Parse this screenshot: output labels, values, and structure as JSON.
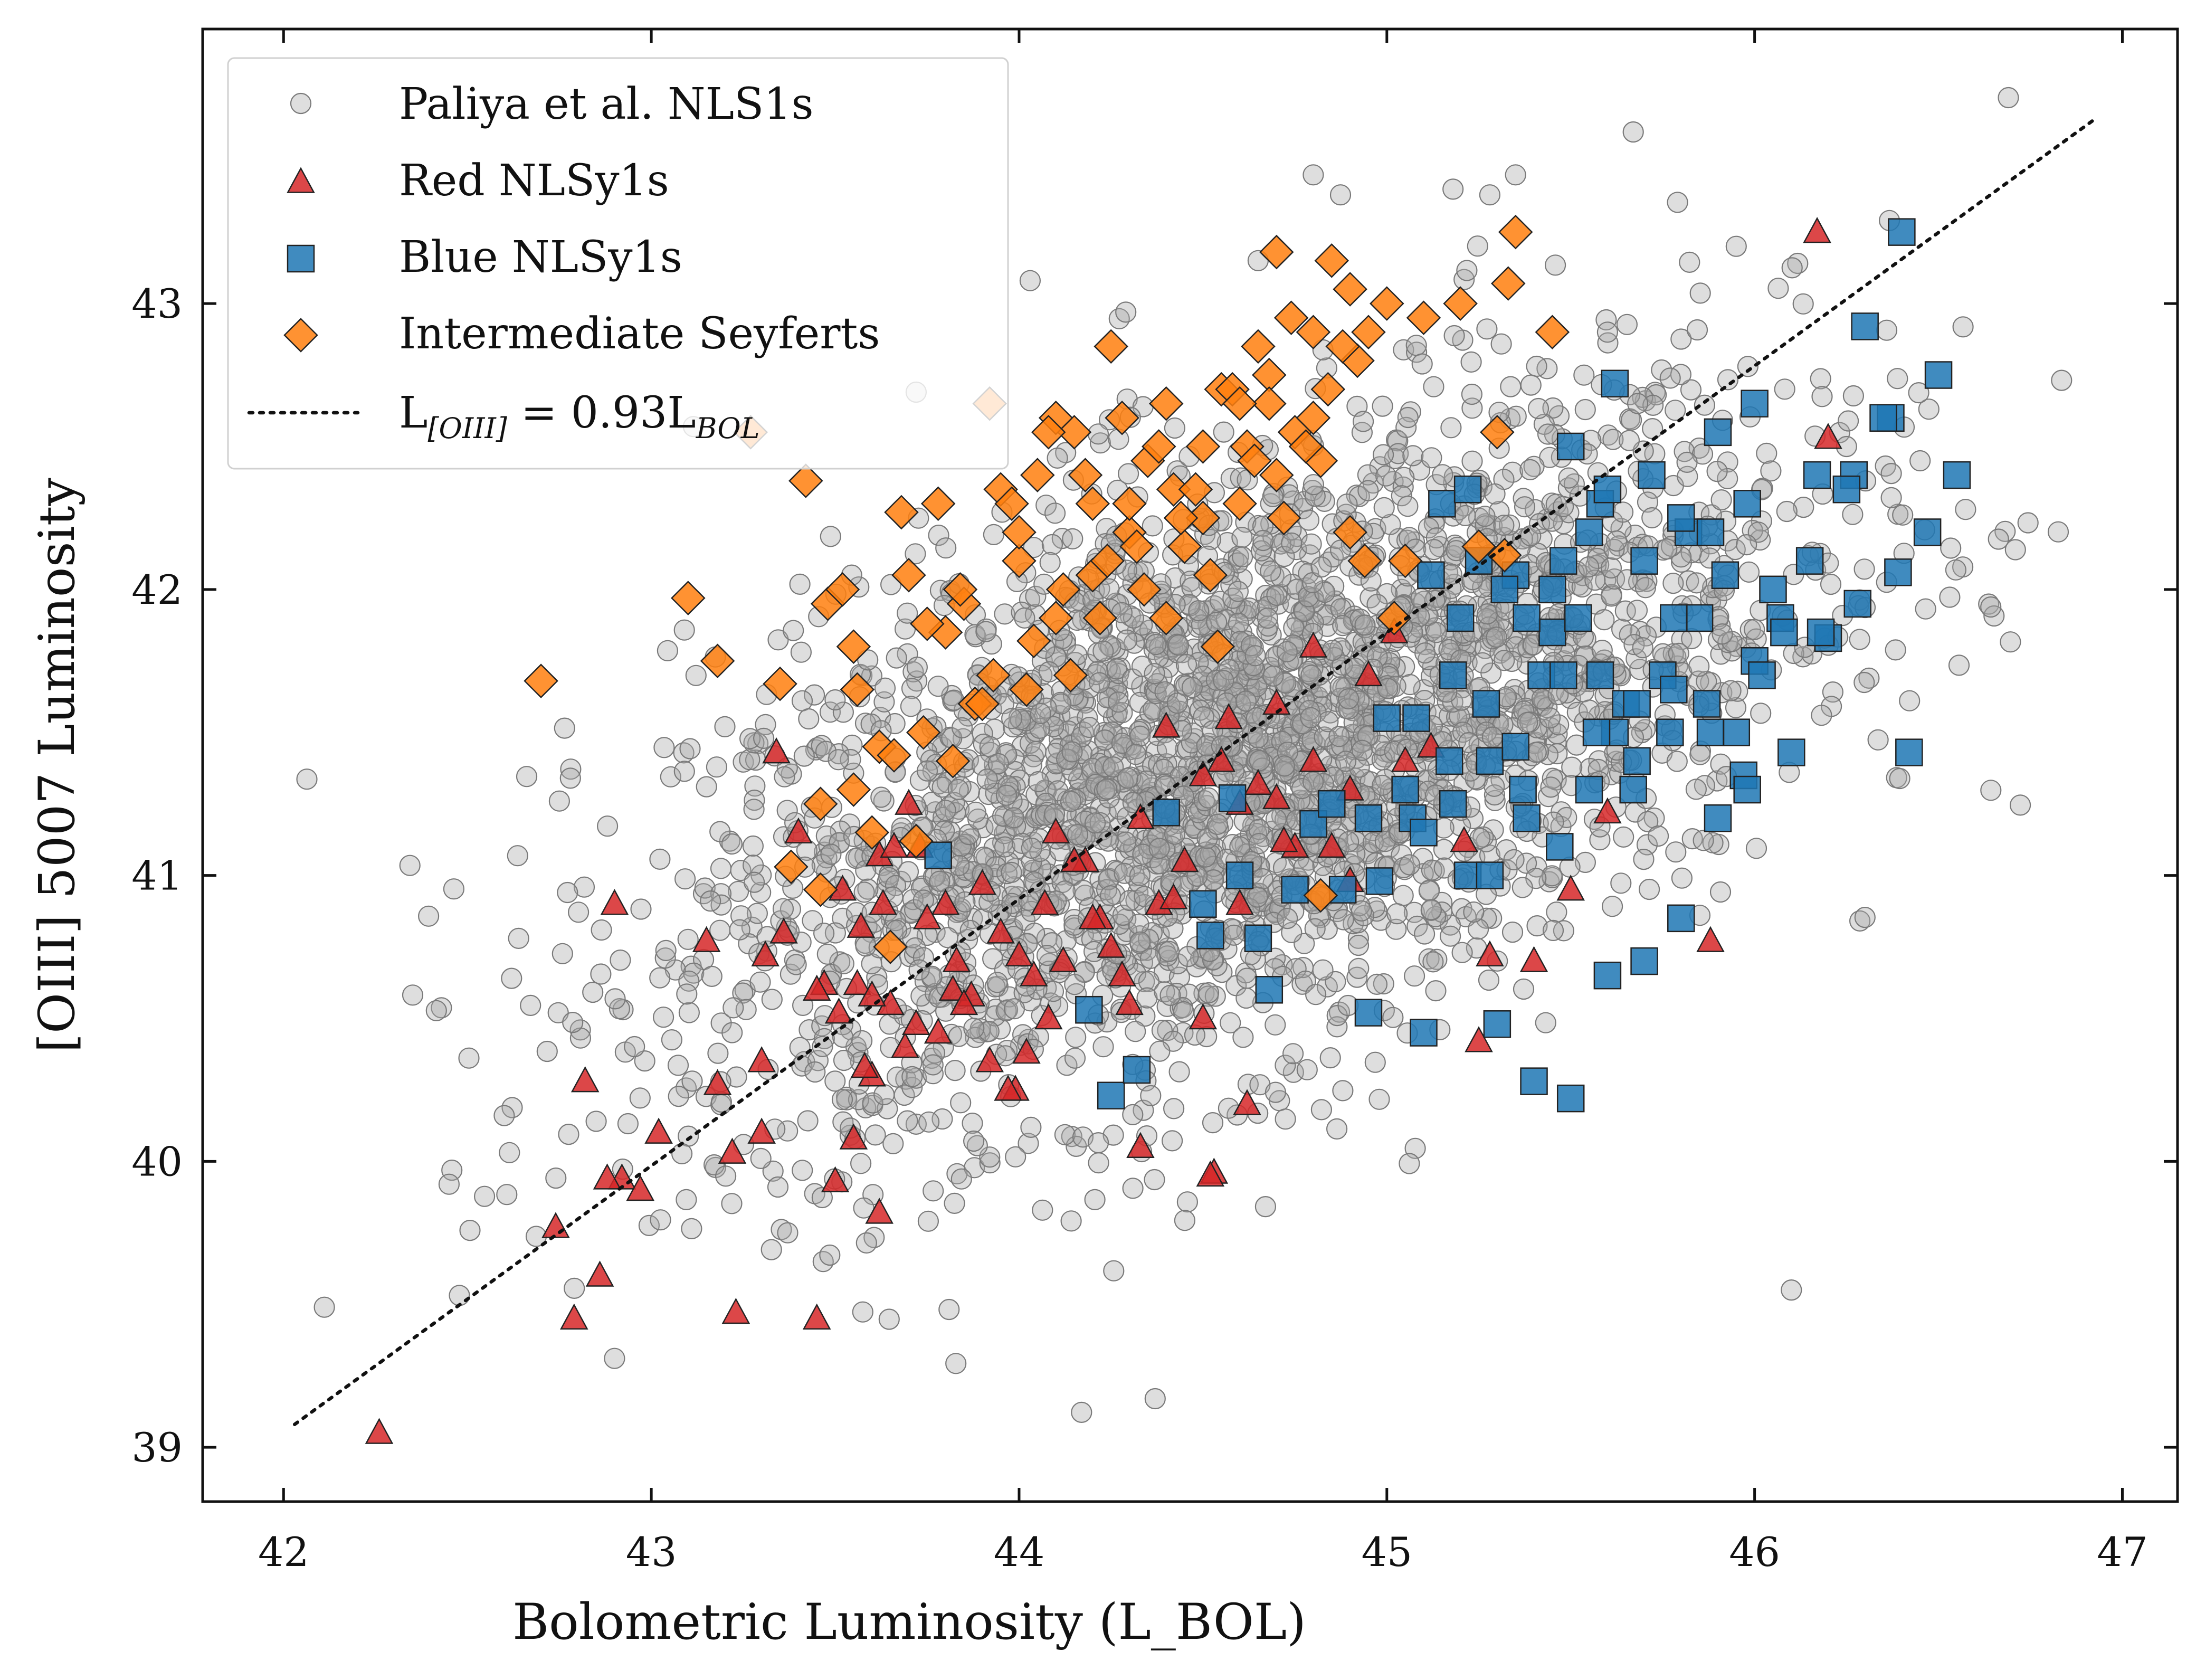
{
  "chart_data": {
    "type": "scatter",
    "title": "",
    "xlabel": "Bolometric Luminosity (L_BOL)",
    "ylabel": "[OIII] 5007 Luminosity",
    "xlim": [
      41.78,
      47.15
    ],
    "ylim": [
      38.81,
      43.96
    ],
    "x_ticks": [
      "42",
      "43",
      "44",
      "45",
      "46",
      "47"
    ],
    "y_ticks": [
      "39",
      "40",
      "41",
      "42",
      "43"
    ],
    "legend": {
      "placement": "top-left",
      "entries": [
        {
          "label": "Paliya et al. NLS1s",
          "marker": "circle"
        },
        {
          "label": "Red NLSy1s",
          "marker": "triangle"
        },
        {
          "label": "Blue NLSy1s",
          "marker": "square"
        },
        {
          "label": "Intermediate Seyferts",
          "marker": "diamond"
        },
        {
          "label_main": "L",
          "label_sub": "[OIII]",
          "label_rest": " = 0.93L",
          "label_sub2": "BOL",
          "marker": "dotted-line"
        }
      ]
    },
    "fit_line": {
      "slope": 0.93,
      "x": [
        42.03,
        46.92
      ],
      "y": [
        39.08,
        43.64
      ]
    },
    "colors": {
      "paliya": "#a9a9a9",
      "red": "#d62728",
      "blue": "#1f77b4",
      "orange": "#ff7f0e",
      "edge": "#222222"
    },
    "series": [
      {
        "name": "Paliya et al. NLS1s",
        "marker": "circle",
        "cloud": {
          "count": 3200,
          "center_x": 44.6,
          "center_y": 41.4,
          "sigma_x": 0.75,
          "sigma_y": 0.62,
          "correlation": 0.55
        },
        "x": [
          42.45,
          42.6,
          42.62,
          42.75,
          43.15,
          43.2,
          42.85,
          46.1,
          44.37,
          46.69,
          45.67,
          45.18,
          45.95,
          45.28,
          44.65,
          45.6,
          46.25,
          45.35,
          44.8,
          42.78,
          44.03,
          43.72,
          46.45
        ],
        "y": [
          39.92,
          40.16,
          40.64,
          41.26,
          41.31,
          41.52,
          40.14,
          39.55,
          39.17,
          43.72,
          43.6,
          43.4,
          43.2,
          43.38,
          43.15,
          42.9,
          42.5,
          43.45,
          43.45,
          41.34,
          43.08,
          42.69,
          42.45
        ]
      },
      {
        "name": "Red NLSy1s",
        "marker": "triangle",
        "x": [
          42.26,
          42.74,
          42.79,
          42.82,
          42.86,
          42.92,
          42.97,
          42.9,
          43.02,
          43.15,
          43.18,
          43.23,
          43.22,
          43.3,
          43.31,
          43.36,
          43.34,
          43.45,
          43.47,
          43.51,
          43.56,
          43.6,
          43.57,
          43.63,
          43.62,
          43.66,
          43.7,
          43.73,
          43.78,
          43.8,
          43.83,
          43.87,
          43.9,
          43.95,
          43.99,
          44.02,
          44.07,
          44.12,
          44.18,
          44.22,
          44.28,
          44.33,
          44.38,
          44.45,
          44.5,
          44.55,
          44.6,
          44.65,
          44.7,
          44.75,
          44.8,
          44.85,
          44.9,
          44.95,
          45.02,
          45.12,
          45.21,
          45.25,
          45.28,
          45.4,
          45.5,
          45.6,
          45.88,
          46.17,
          46.2,
          43.45,
          43.52,
          43.58,
          43.69,
          43.75,
          43.82,
          43.97,
          44.04,
          44.15,
          44.25,
          44.42,
          44.53,
          44.62,
          44.72,
          43.4,
          43.3,
          43.55,
          43.65,
          43.85,
          44.0,
          44.1,
          44.2,
          44.3,
          44.4,
          44.5,
          44.6,
          44.7,
          44.8,
          44.9,
          43.62,
          43.72,
          43.92,
          44.08,
          43.5,
          43.6,
          44.33,
          44.52,
          44.57,
          45.05,
          42.88
        ],
        "y": [
          39.05,
          39.77,
          39.45,
          40.28,
          39.6,
          39.94,
          39.9,
          40.9,
          40.1,
          40.77,
          40.27,
          39.47,
          40.03,
          40.1,
          40.72,
          40.8,
          41.43,
          39.45,
          40.62,
          40.52,
          40.62,
          40.3,
          40.82,
          40.9,
          41.07,
          41.1,
          41.25,
          41.1,
          40.45,
          40.9,
          40.7,
          40.58,
          40.97,
          40.8,
          40.25,
          40.38,
          40.9,
          40.7,
          41.05,
          40.85,
          40.65,
          41.2,
          40.9,
          41.05,
          40.5,
          41.4,
          40.9,
          41.32,
          41.27,
          41.1,
          41.4,
          41.1,
          40.98,
          41.7,
          41.85,
          41.45,
          41.12,
          40.42,
          40.72,
          40.7,
          40.95,
          41.22,
          40.77,
          43.25,
          42.53,
          40.6,
          40.95,
          40.33,
          40.4,
          40.85,
          40.6,
          40.25,
          40.65,
          41.05,
          40.75,
          40.92,
          39.96,
          40.2,
          41.12,
          41.15,
          40.35,
          40.08,
          40.55,
          40.55,
          40.72,
          41.15,
          40.85,
          40.55,
          41.52,
          41.35,
          41.25,
          41.6,
          41.8,
          41.3,
          39.82,
          40.48,
          40.35,
          40.5,
          39.93,
          40.58,
          40.05,
          39.95,
          41.55,
          41.4,
          39.94
        ]
      },
      {
        "name": "Blue NLSy1s",
        "marker": "square",
        "x": [
          43.78,
          44.19,
          44.25,
          44.32,
          44.52,
          44.58,
          44.65,
          44.8,
          44.95,
          45.0,
          45.1,
          45.2,
          45.3,
          45.4,
          45.5,
          45.6,
          45.7,
          45.8,
          45.9,
          46.0,
          46.1,
          46.2,
          46.3,
          46.4,
          46.5,
          45.15,
          45.25,
          45.35,
          45.45,
          45.55,
          45.65,
          45.75,
          45.85,
          45.95,
          46.05,
          46.15,
          45.12,
          45.22,
          45.32,
          45.42,
          45.52,
          45.62,
          45.72,
          45.82,
          45.92,
          46.02,
          45.18,
          45.28,
          45.38,
          45.48,
          45.58,
          45.68,
          45.78,
          45.88,
          45.98,
          45.07,
          45.17,
          45.27,
          45.37,
          45.47,
          45.57,
          45.67,
          45.77,
          45.87,
          45.97,
          46.07,
          46.17,
          46.27,
          46.37,
          46.47,
          46.55,
          46.39,
          46.42,
          45.55,
          45.35,
          45.22,
          45.1,
          45.05,
          44.95,
          44.85,
          44.75,
          44.68,
          44.6,
          44.5,
          44.4,
          44.88,
          44.98,
          45.08,
          45.18,
          45.28,
          45.38,
          45.48,
          45.58,
          45.68,
          45.78,
          45.88,
          45.98,
          46.08,
          46.18,
          46.28,
          45.45,
          45.5,
          45.6,
          45.62,
          45.7,
          45.8,
          45.9,
          46.0,
          46.25,
          46.35
        ],
        "y": [
          41.07,
          40.53,
          40.23,
          40.32,
          40.79,
          41.27,
          40.78,
          41.18,
          40.52,
          41.55,
          40.45,
          41.9,
          40.48,
          40.28,
          40.22,
          40.65,
          40.7,
          40.85,
          41.2,
          41.75,
          41.43,
          41.83,
          42.92,
          43.25,
          42.75,
          42.3,
          42.1,
          42.05,
          41.85,
          42.2,
          41.6,
          41.7,
          41.9,
          41.5,
          42.0,
          42.1,
          42.05,
          42.35,
          42.0,
          41.7,
          41.9,
          41.5,
          42.4,
          42.2,
          42.05,
          41.7,
          41.7,
          41.4,
          41.2,
          41.7,
          42.3,
          41.6,
          41.9,
          42.2,
          42.3,
          41.2,
          41.4,
          41.6,
          41.3,
          41.1,
          41.5,
          41.3,
          41.5,
          41.6,
          41.35,
          41.9,
          42.4,
          42.4,
          42.6,
          42.2,
          42.4,
          42.06,
          41.43,
          41.3,
          41.45,
          41.0,
          41.15,
          41.3,
          41.2,
          41.25,
          40.95,
          40.6,
          41.0,
          40.9,
          41.22,
          40.95,
          40.98,
          41.55,
          41.25,
          41.0,
          41.9,
          42.1,
          41.7,
          41.4,
          41.65,
          41.5,
          41.3,
          41.85,
          41.85,
          41.95,
          42.0,
          42.5,
          42.35,
          42.72,
          42.1,
          42.25,
          42.55,
          42.65,
          42.35,
          42.6
        ]
      },
      {
        "name": "Intermediate Seyferts",
        "marker": "diamond",
        "x": [
          42.7,
          43.1,
          43.18,
          43.27,
          43.35,
          43.42,
          43.46,
          43.38,
          43.48,
          43.55,
          43.52,
          43.6,
          43.65,
          43.68,
          43.72,
          43.78,
          43.82,
          43.88,
          43.92,
          43.95,
          44.0,
          44.05,
          44.1,
          44.15,
          44.2,
          44.25,
          44.3,
          44.35,
          44.4,
          44.45,
          44.5,
          44.55,
          44.6,
          44.65,
          44.7,
          44.75,
          44.8,
          44.85,
          44.9,
          44.95,
          45.0,
          45.1,
          45.2,
          45.3,
          45.35,
          45.45,
          44.82,
          44.68,
          43.55,
          43.62,
          43.7,
          43.74,
          43.85,
          43.93,
          44.02,
          44.12,
          44.22,
          44.32,
          44.42,
          44.52,
          44.62,
          44.72,
          44.82,
          44.92,
          43.98,
          44.08,
          44.18,
          44.28,
          44.38,
          44.48,
          44.58,
          44.68,
          44.78,
          44.88,
          43.8,
          43.9,
          44.0,
          44.1,
          44.2,
          44.3,
          44.4,
          44.5,
          44.6,
          44.7,
          44.8,
          44.9,
          45.02,
          45.25,
          45.05,
          43.46,
          43.56,
          43.66,
          43.75,
          43.84,
          44.04,
          44.14,
          44.24,
          44.34,
          44.44,
          44.54,
          44.64,
          44.74,
          44.84,
          44.94,
          45.33,
          45.32
        ],
        "y": [
          41.68,
          41.97,
          41.75,
          42.55,
          41.67,
          42.38,
          41.25,
          41.03,
          41.95,
          41.3,
          42.0,
          41.15,
          40.75,
          42.27,
          41.12,
          42.3,
          41.4,
          41.6,
          42.65,
          42.35,
          42.1,
          42.4,
          42.6,
          42.55,
          42.3,
          42.85,
          42.2,
          42.45,
          42.65,
          42.15,
          42.5,
          42.7,
          42.3,
          42.85,
          43.18,
          42.55,
          42.9,
          43.15,
          43.05,
          42.9,
          43.0,
          42.95,
          43.0,
          42.55,
          43.25,
          42.9,
          40.93,
          42.75,
          41.8,
          41.45,
          42.05,
          41.5,
          41.95,
          41.7,
          41.65,
          42.0,
          41.9,
          42.15,
          42.35,
          42.05,
          42.5,
          42.25,
          42.45,
          42.8,
          42.3,
          42.55,
          42.4,
          42.6,
          42.5,
          42.35,
          42.7,
          42.65,
          42.5,
          42.85,
          41.85,
          41.6,
          42.2,
          41.9,
          42.05,
          42.3,
          41.9,
          42.25,
          42.65,
          42.4,
          42.6,
          42.2,
          41.9,
          42.15,
          42.1,
          40.95,
          41.65,
          41.42,
          41.88,
          42.0,
          41.82,
          41.7,
          42.1,
          42.0,
          42.25,
          41.8,
          42.45,
          42.95,
          42.7,
          42.1,
          43.07,
          42.12
        ]
      }
    ]
  }
}
